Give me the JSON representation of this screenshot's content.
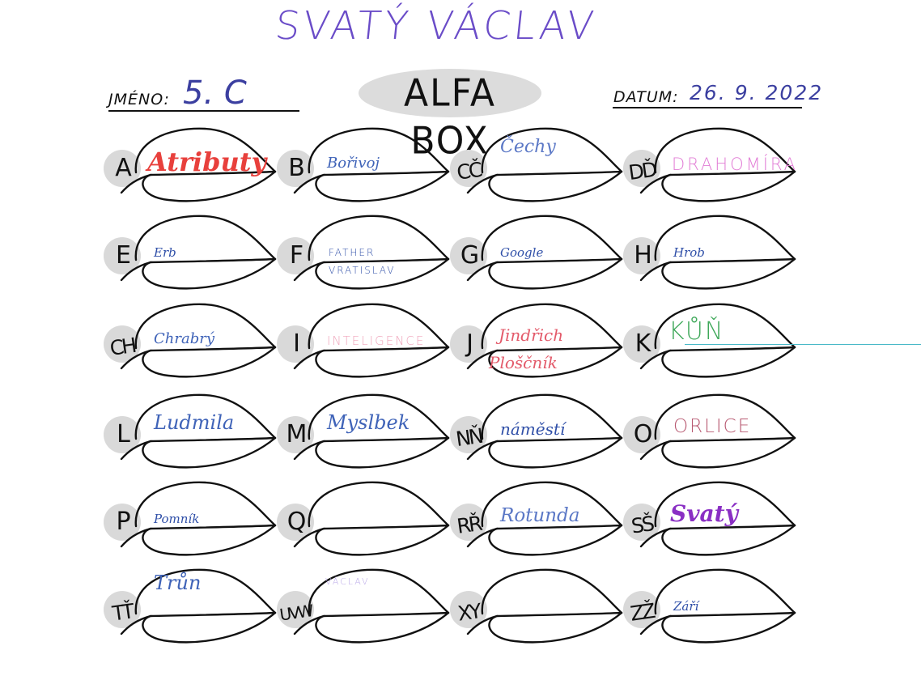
{
  "title": "SVATÝ VÁCLAV",
  "header": {
    "name_label": "JMÉNO:",
    "name_value": "5. C",
    "box_title": "ALFA BOX",
    "date_label": "DATUM:",
    "date_value": "26. 9. 2022"
  },
  "cells": [
    {
      "letter": "A",
      "words": [
        "Atributy"
      ],
      "color": "#e8403c"
    },
    {
      "letter": "B",
      "words": [
        "Bořivoj"
      ],
      "color": "#3f63b8"
    },
    {
      "letter": "CČ",
      "words": [
        "Čechy"
      ],
      "color": "#5b78c6"
    },
    {
      "letter": "DĎ",
      "words": [
        "DRAHOMÍRA"
      ],
      "color": "#e27ed6"
    },
    {
      "letter": "E",
      "words": [
        "Erb"
      ],
      "color": "#2f4fa8"
    },
    {
      "letter": "F",
      "words": [
        "FATHER",
        "VRATISLAV"
      ],
      "color": "#2f4fa8"
    },
    {
      "letter": "G",
      "words": [
        "Google"
      ],
      "color": "#2f4fa8"
    },
    {
      "letter": "H",
      "words": [
        "Hrob"
      ],
      "color": "#2f4fa8"
    },
    {
      "letter": "CH",
      "words": [
        "Chrabrý"
      ],
      "color": "#3f63b8"
    },
    {
      "letter": "I",
      "words": [
        "INTELIGENCE"
      ],
      "color": "#f0a7bd"
    },
    {
      "letter": "J",
      "words": [
        "Jindřich",
        "Ploščník"
      ],
      "color": "#e35a6a"
    },
    {
      "letter": "K",
      "words": [
        "KŮŇ"
      ],
      "color": "#3fa85a"
    },
    {
      "letter": "L",
      "words": [
        "Ludmila"
      ],
      "color": "#3f63b8"
    },
    {
      "letter": "M",
      "words": [
        "Myslbek"
      ],
      "color": "#3f63b8"
    },
    {
      "letter": "NŇ",
      "words": [
        "náměstí"
      ],
      "color": "#2f4fa8"
    },
    {
      "letter": "O",
      "words": [
        "ORLICE"
      ],
      "color": "#b85a72"
    },
    {
      "letter": "P",
      "words": [
        "Pomník"
      ],
      "color": "#2f4fa8"
    },
    {
      "letter": "Q",
      "words": [
        ""
      ],
      "color": "#2f4fa8"
    },
    {
      "letter": "RŘ",
      "words": [
        "Rotunda"
      ],
      "color": "#5b78c6"
    },
    {
      "letter": "SŠ",
      "words": [
        "Svatý"
      ],
      "color": "#8a2fc4"
    },
    {
      "letter": "TŤ",
      "words": [
        "Trůn"
      ],
      "color": "#3f63b8"
    },
    {
      "letter": "UVW",
      "words": [
        "VÁCLAV"
      ],
      "color": "#b9a7e8"
    },
    {
      "letter": "XY",
      "words": [
        ""
      ],
      "color": "#2f4fa8"
    },
    {
      "letter": "ZŽ",
      "words": [
        "Září"
      ],
      "color": "#2f4fa8"
    }
  ]
}
